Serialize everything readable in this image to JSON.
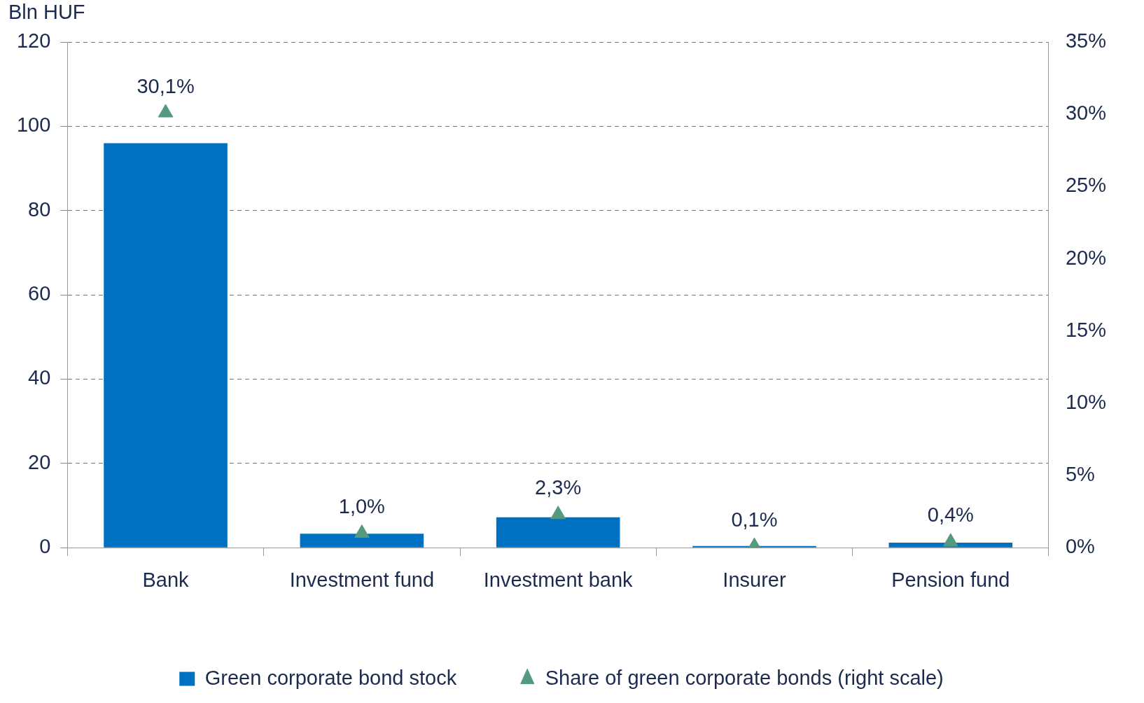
{
  "chart_data": {
    "type": "bar",
    "ylabel": "Bln HUF",
    "categories": [
      "Bank",
      "Investment fund",
      "Investment bank",
      "Insurer",
      "Pension fund"
    ],
    "series": [
      {
        "name": "Green corporate bond stock",
        "color": "#0070c0",
        "values": [
          96,
          3.3,
          7.2,
          0.4,
          1.2
        ]
      },
      {
        "name": "Share of green corporate bonds (right scale)",
        "type": "scatter",
        "axis": "y2",
        "marker": "triangle",
        "color": "#559a7e",
        "values": [
          30.1,
          1.0,
          2.3,
          0.1,
          0.4
        ],
        "value_labels": [
          "30,1%",
          "1,0%",
          "2,3%",
          "0,1%",
          "0,4%"
        ]
      }
    ],
    "ylim": [
      0,
      120
    ],
    "yticks": [
      0,
      20,
      40,
      60,
      80,
      100,
      120
    ],
    "y2lim": [
      0,
      35
    ],
    "y2ticks": [
      {
        "value": 0,
        "label": "0%"
      },
      {
        "value": 5,
        "label": "5%"
      },
      {
        "value": 10,
        "label": "10%"
      },
      {
        "value": 15,
        "label": "15%"
      },
      {
        "value": 20,
        "label": "20%"
      },
      {
        "value": 25,
        "label": "25%"
      },
      {
        "value": 30,
        "label": "30%"
      },
      {
        "value": 35,
        "label": "35%"
      }
    ],
    "grid": "y",
    "line_style": "dashed",
    "legend": "bottom"
  }
}
